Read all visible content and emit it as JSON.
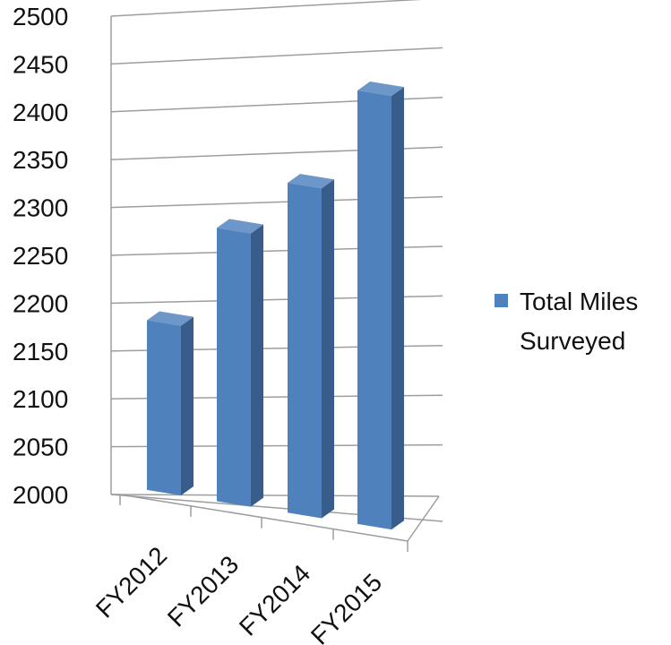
{
  "chart_data": {
    "type": "bar",
    "categories": [
      "FY2012",
      "FY2013",
      "FY2014",
      "FY2015"
    ],
    "series": [
      {
        "name": "Total Miles Surveyed",
        "color": "#4F81BD",
        "values": [
          2180,
          2290,
          2350,
          2460
        ]
      }
    ],
    "yticks": [
      "2000",
      "2050",
      "2100",
      "2150",
      "2200",
      "2250",
      "2300",
      "2350",
      "2400",
      "2450",
      "2500"
    ],
    "ylim": [
      2000,
      2500
    ],
    "title": "",
    "xlabel": "",
    "ylabel": "",
    "grid": true,
    "legend_position": "right",
    "style": "3d-column"
  },
  "legend": {
    "line1": "Total Miles",
    "line2": "Surveyed"
  }
}
